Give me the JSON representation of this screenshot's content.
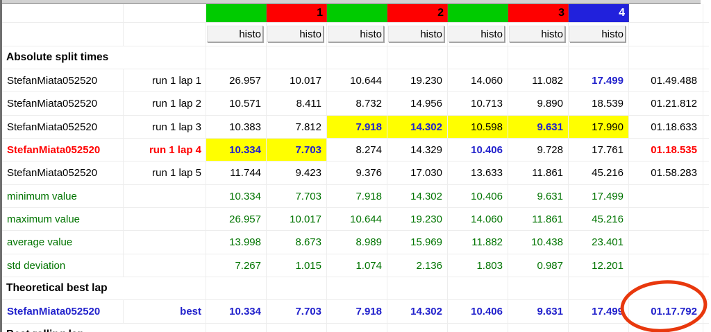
{
  "table": {
    "header_cells": [
      {
        "label": "",
        "bg": "#00cb00",
        "fg": "#000000"
      },
      {
        "label": "1",
        "bg": "#fe0000",
        "fg": "#000000"
      },
      {
        "label": "",
        "bg": "#00cb00",
        "fg": "#000000"
      },
      {
        "label": "2",
        "bg": "#fe0000",
        "fg": "#000000"
      },
      {
        "label": "",
        "bg": "#00cb00",
        "fg": "#000000"
      },
      {
        "label": "3",
        "bg": "#fe0000",
        "fg": "#000000"
      },
      {
        "label": "4",
        "bg": "#2121dc",
        "fg": "#ffffff"
      }
    ],
    "histo_label": "histo",
    "section_absolute": "Absolute split times",
    "section_theoretical": "Theoretical best lap",
    "section_best_rolling": "Best rolling lap",
    "lap_rows": [
      {
        "name": "StefanMiata052520",
        "lap": "run 1 lap 1",
        "style": "normal",
        "splits": [
          {
            "v": "26.957"
          },
          {
            "v": "10.017"
          },
          {
            "v": "10.644"
          },
          {
            "v": "19.230"
          },
          {
            "v": "14.060"
          },
          {
            "v": "11.082"
          },
          {
            "v": "17.499",
            "best": true
          }
        ],
        "total": {
          "v": "01.49.488",
          "style": "normal"
        }
      },
      {
        "name": "StefanMiata052520",
        "lap": "run 1 lap 2",
        "style": "normal",
        "splits": [
          {
            "v": "10.571"
          },
          {
            "v": "8.411"
          },
          {
            "v": "8.732"
          },
          {
            "v": "14.956"
          },
          {
            "v": "10.713"
          },
          {
            "v": "9.890"
          },
          {
            "v": "18.539"
          }
        ],
        "total": {
          "v": "01.21.812",
          "style": "normal"
        }
      },
      {
        "name": "StefanMiata052520",
        "lap": "run 1 lap 3",
        "style": "normal",
        "splits": [
          {
            "v": "10.383"
          },
          {
            "v": "7.812"
          },
          {
            "v": "7.918",
            "best": true,
            "hl": true
          },
          {
            "v": "14.302",
            "best": true,
            "hl": true
          },
          {
            "v": "10.598",
            "hl": true
          },
          {
            "v": "9.631",
            "best": true,
            "hl": true
          },
          {
            "v": "17.990",
            "hl": true
          }
        ],
        "total": {
          "v": "01.18.633",
          "style": "normal"
        }
      },
      {
        "name": "StefanMiata052520",
        "lap": "run 1 lap 4",
        "style": "red",
        "splits": [
          {
            "v": "10.334",
            "best": true,
            "hl": true
          },
          {
            "v": "7.703",
            "best": true,
            "hl": true
          },
          {
            "v": "8.274"
          },
          {
            "v": "14.329"
          },
          {
            "v": "10.406",
            "best": true
          },
          {
            "v": "9.728"
          },
          {
            "v": "17.761"
          }
        ],
        "total": {
          "v": "01.18.535",
          "style": "red"
        }
      },
      {
        "name": "StefanMiata052520",
        "lap": "run 1 lap 5",
        "style": "normal",
        "splits": [
          {
            "v": "11.744"
          },
          {
            "v": "9.423"
          },
          {
            "v": "9.376"
          },
          {
            "v": "17.030"
          },
          {
            "v": "13.633"
          },
          {
            "v": "11.861"
          },
          {
            "v": "45.216"
          }
        ],
        "total": {
          "v": "01.58.283",
          "style": "normal"
        }
      }
    ],
    "stat_rows": [
      {
        "label": "minimum value",
        "values": [
          "10.334",
          "7.703",
          "7.918",
          "14.302",
          "10.406",
          "9.631",
          "17.499"
        ]
      },
      {
        "label": "maximum value",
        "values": [
          "26.957",
          "10.017",
          "10.644",
          "19.230",
          "14.060",
          "11.861",
          "45.216"
        ]
      },
      {
        "label": "average value",
        "values": [
          "13.998",
          "8.673",
          "8.989",
          "15.969",
          "11.882",
          "10.438",
          "23.401"
        ]
      },
      {
        "label": "std deviation",
        "values": [
          "7.267",
          "1.015",
          "1.074",
          "2.136",
          "1.803",
          "0.987",
          "12.201"
        ]
      }
    ],
    "best_row": {
      "name": "StefanMiata052520",
      "lap": "best",
      "splits": [
        "10.334",
        "7.703",
        "7.918",
        "14.302",
        "10.406",
        "9.631",
        "17.499"
      ],
      "total": "01.17.792"
    },
    "annotation": {
      "shape": "ellipse",
      "color": "#e8380d",
      "target": "best_lap_time"
    }
  },
  "colors": {
    "green_header": "#00cb00",
    "red_header": "#fe0000",
    "blue_header": "#2121dc",
    "yellow_highlight": "#ffff00",
    "green_text": "#007400",
    "blue_text": "#2222cc",
    "red_text": "#ff0000",
    "annotation": "#e8380d"
  }
}
